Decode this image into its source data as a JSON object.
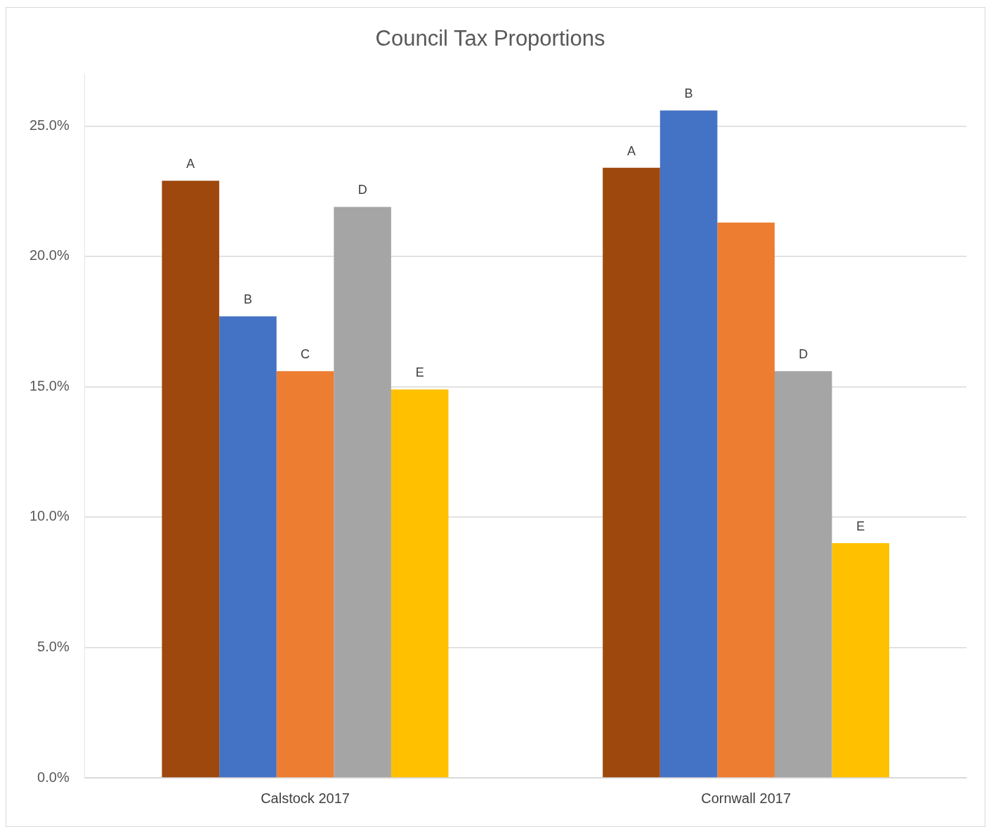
{
  "chart_data": {
    "type": "bar",
    "title": "Council Tax Proportions",
    "categories": [
      "Calstock 2017",
      "Cornwall 2017"
    ],
    "series": [
      {
        "color": "#9e480e",
        "values": [
          22.9,
          23.4
        ],
        "value_labels": [
          "A",
          "A"
        ]
      },
      {
        "color": "#4472c4",
        "values": [
          17.7,
          25.6
        ],
        "value_labels": [
          "B",
          "B"
        ]
      },
      {
        "color": "#ed7d31",
        "values": [
          15.6,
          21.3
        ],
        "value_labels": [
          "C",
          null
        ]
      },
      {
        "color": "#a5a5a5",
        "values": [
          21.9,
          15.6
        ],
        "value_labels": [
          "D",
          "D"
        ]
      },
      {
        "color": "#ffc000",
        "values": [
          14.9,
          9.0
        ],
        "value_labels": [
          "E",
          "E"
        ]
      }
    ],
    "yticks": [
      {
        "value": 0,
        "label": "0.0%"
      },
      {
        "value": 5,
        "label": "5.0%"
      },
      {
        "value": 10,
        "label": "10.0%"
      },
      {
        "value": 15,
        "label": "15.0%"
      },
      {
        "value": 20,
        "label": "20.0%"
      },
      {
        "value": 25,
        "label": "25.0%"
      }
    ],
    "ylim": [
      0,
      27
    ],
    "grid": "y",
    "legend": false
  }
}
